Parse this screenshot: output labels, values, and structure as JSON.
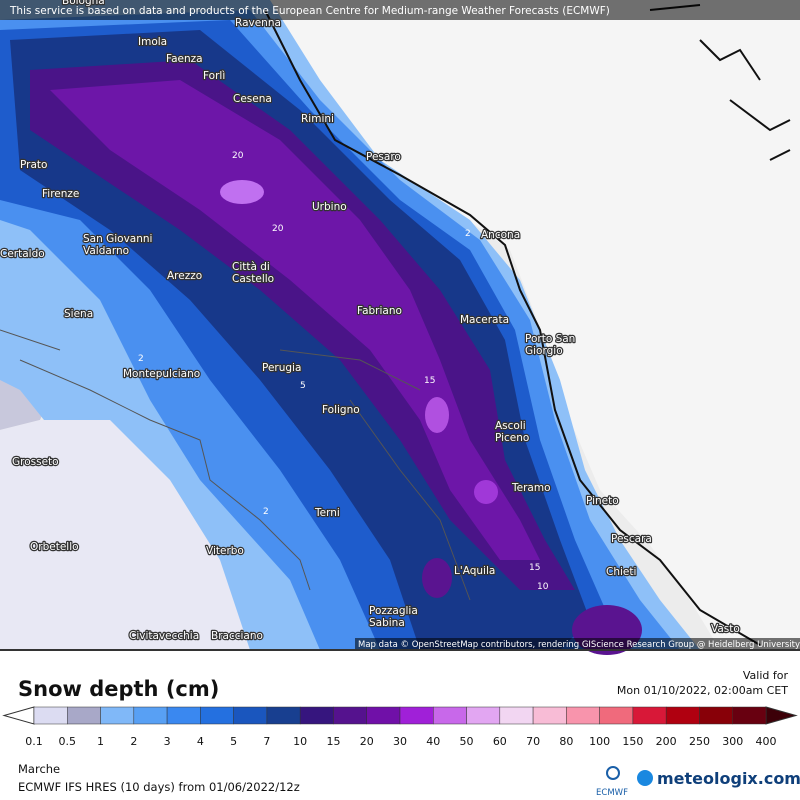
{
  "header": {
    "attribution": "This service is based on data and products of the European Centre for Medium-range Weather Forecasts (ECMWF)"
  },
  "map": {
    "cities": [
      [
        "Bologna"
      ],
      [
        "Ravenna"
      ],
      [
        "Imola"
      ],
      [
        "Faenza"
      ],
      [
        "Forlì"
      ],
      [
        "Cesena"
      ],
      [
        "Rimini"
      ],
      [
        "Pesaro"
      ],
      [
        "Prato"
      ],
      [
        "Firenze"
      ],
      [
        "Urbino"
      ],
      [
        "Ancona"
      ],
      [
        "San Giovanni",
        "Valdarno"
      ],
      [
        "Certaldo"
      ],
      [
        "Arezzo"
      ],
      [
        "Città di",
        "Castello"
      ],
      [
        "Siena"
      ],
      [
        "Fabriano"
      ],
      [
        "Macerata"
      ],
      [
        "Porto San",
        "Giorgio"
      ],
      [
        "Perugia"
      ],
      [
        "Montepulciano"
      ],
      [
        "Foligno"
      ],
      [
        "Ascoli",
        "Piceno"
      ],
      [
        "Grosseto"
      ],
      [
        "Teramo"
      ],
      [
        "Pineto"
      ],
      [
        "Terni"
      ],
      [
        "Pescara"
      ],
      [
        "Orbetello"
      ],
      [
        "Viterbo"
      ],
      [
        "L'Aquila"
      ],
      [
        "Chieti"
      ],
      [
        "Pozzaglia",
        "Sabina"
      ],
      [
        "Civitavecchia"
      ],
      [
        "Bracciano"
      ],
      [
        "Vasto"
      ]
    ],
    "contour_labels": [
      "2",
      "5",
      "2",
      "20",
      "20",
      "15",
      "15",
      "10",
      "2"
    ],
    "credits": "Map data © OpenStreetMap contributors, rendering GIScience Research Group @ Heidelberg University"
  },
  "legend": {
    "title": "Snow depth (cm)",
    "valid_label": "Valid for",
    "valid_time": "Mon 01/10/2022, 02:00am CET",
    "ticks": [
      "0.1",
      "0.5",
      "1",
      "2",
      "3",
      "4",
      "5",
      "7",
      "10",
      "15",
      "20",
      "30",
      "40",
      "50",
      "60",
      "70",
      "80",
      "100",
      "150",
      "200",
      "250",
      "300",
      "400"
    ]
  },
  "footer": {
    "region": "Marche",
    "model": "ECMWF IFS HRES (10 days) from 01/06/2022/12z",
    "logo_ecmwf": "ECMWF",
    "logo_site": "meteologix.com"
  }
}
